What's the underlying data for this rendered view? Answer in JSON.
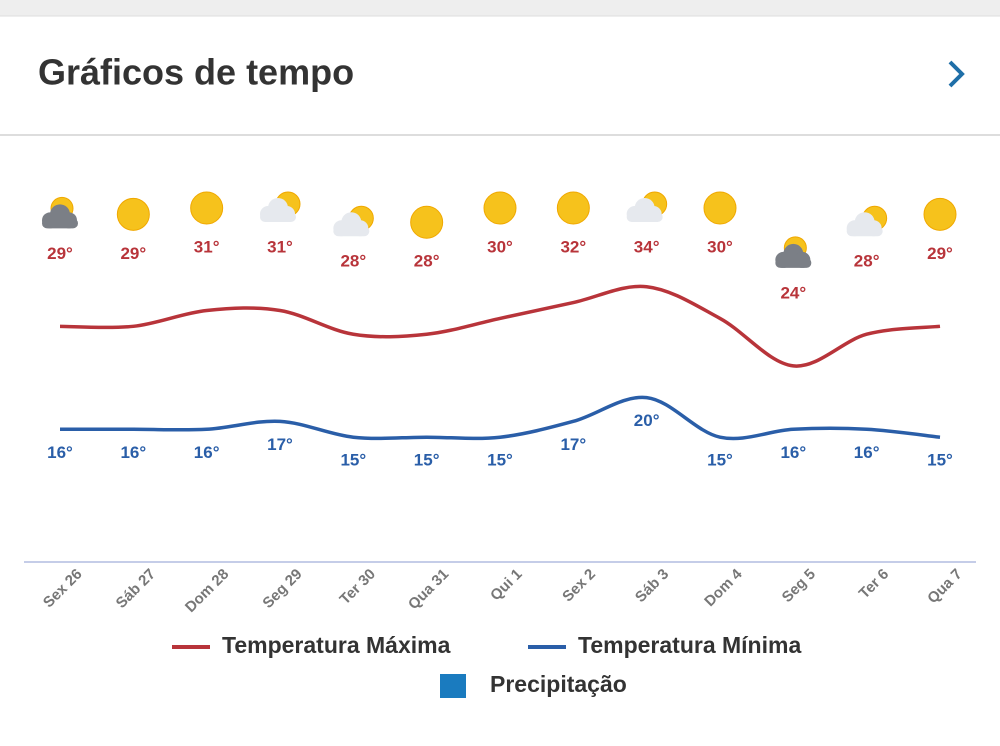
{
  "header": {
    "title": "Gráficos de tempo"
  },
  "chart_data": {
    "type": "line",
    "categories": [
      "Sex 26",
      "Sáb 27",
      "Dom 28",
      "Seg 29",
      "Ter 30",
      "Qua 31",
      "Qui 1",
      "Sex 2",
      "Sáb 3",
      "Dom 4",
      "Seg 5",
      "Ter 6",
      "Qua 7"
    ],
    "series": [
      {
        "name": "Temperatura Máxima",
        "color": "#b8343a",
        "values": [
          29,
          29,
          31,
          31,
          28,
          28,
          30,
          32,
          34,
          30,
          24,
          28,
          29
        ],
        "value_labels": [
          "29°",
          "29°",
          "31°",
          "31°",
          "28°",
          "28°",
          "30°",
          "32°",
          "34°",
          "30°",
          "24°",
          "28°",
          "29°"
        ]
      },
      {
        "name": "Temperatura Mínima",
        "color": "#2a5ea8",
        "values": [
          16,
          16,
          16,
          17,
          15,
          15,
          15,
          17,
          20,
          15,
          16,
          16,
          15
        ],
        "value_labels": [
          "16°",
          "16°",
          "16°",
          "17°",
          "15°",
          "15°",
          "15°",
          "17°",
          "20°",
          "15°",
          "16°",
          "16°",
          "15°"
        ]
      }
    ],
    "extra_legend": {
      "name": "Precipitação",
      "color": "#1a7bbf"
    },
    "ylim": [
      0,
      50
    ],
    "grid": false
  }
}
